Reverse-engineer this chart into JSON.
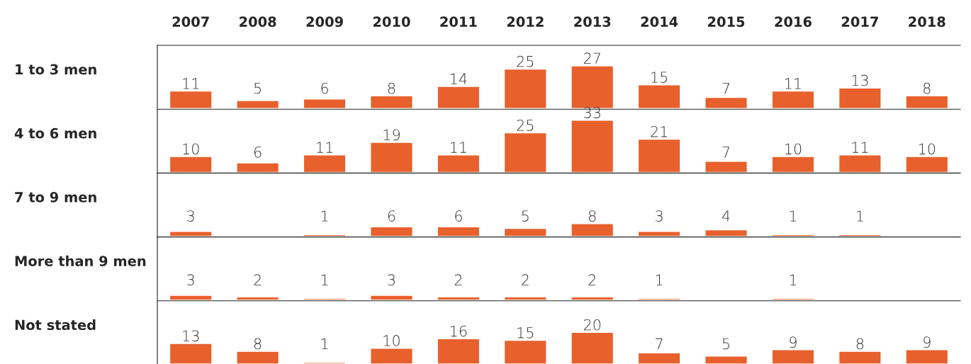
{
  "chart_data": [
    {
      "type": "bar",
      "title": "1 to 3 men",
      "categories": [
        "2007",
        "2008",
        "2009",
        "2010",
        "2011",
        "2012",
        "2013",
        "2014",
        "2015",
        "2016",
        "2017",
        "2018"
      ],
      "values": [
        11,
        5,
        6,
        8,
        14,
        25,
        27,
        15,
        7,
        11,
        13,
        8
      ],
      "color": "#e8602c",
      "ylim": [
        0,
        40
      ],
      "data_labels": true,
      "tick_labels": "x",
      "grid": false,
      "legend": false
    },
    {
      "type": "bar",
      "title": "4 to 6 men",
      "categories": [
        "2007",
        "2008",
        "2009",
        "2010",
        "2011",
        "2012",
        "2013",
        "2014",
        "2015",
        "2016",
        "2017",
        "2018"
      ],
      "values": [
        10,
        6,
        11,
        19,
        11,
        25,
        33,
        21,
        7,
        10,
        11,
        10
      ],
      "color": "#e8602c",
      "ylim": [
        0,
        40
      ],
      "data_labels": true,
      "tick_labels": false,
      "grid": false,
      "legend": false
    },
    {
      "type": "bar",
      "title": "7 to 9 men",
      "categories": [
        "2007",
        "2008",
        "2009",
        "2010",
        "2011",
        "2012",
        "2013",
        "2014",
        "2015",
        "2016",
        "2017",
        "2018"
      ],
      "values": [
        3,
        null,
        1,
        6,
        6,
        5,
        8,
        3,
        4,
        1,
        1,
        null
      ],
      "color": "#e8602c",
      "ylim": [
        0,
        40
      ],
      "data_labels": true,
      "tick_labels": false,
      "grid": false,
      "legend": false
    },
    {
      "type": "bar",
      "title": "More than 9 men",
      "categories": [
        "2007",
        "2008",
        "2009",
        "2010",
        "2011",
        "2012",
        "2013",
        "2014",
        "2015",
        "2016",
        "2017",
        "2018"
      ],
      "values": [
        3,
        2,
        1,
        3,
        2,
        2,
        2,
        1,
        null,
        1,
        null,
        null
      ],
      "color": "#e8602c",
      "ylim": [
        0,
        40
      ],
      "data_labels": true,
      "tick_labels": false,
      "grid": false,
      "legend": false
    },
    {
      "type": "bar",
      "title": "Not stated",
      "categories": [
        "2007",
        "2008",
        "2009",
        "2010",
        "2011",
        "2012",
        "2013",
        "2014",
        "2015",
        "2016",
        "2017",
        "2018"
      ],
      "values": [
        13,
        8,
        1,
        10,
        16,
        15,
        20,
        7,
        5,
        9,
        8,
        9
      ],
      "color": "#e8602c",
      "ylim": [
        0,
        40
      ],
      "data_labels": true,
      "tick_labels": false,
      "grid": false,
      "legend": false
    }
  ]
}
